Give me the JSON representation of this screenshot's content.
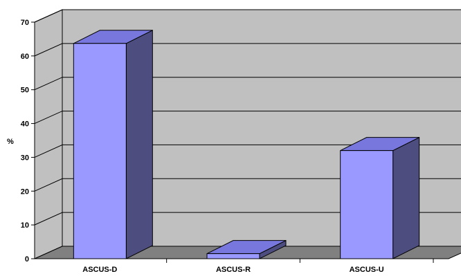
{
  "chart_data": {
    "type": "bar",
    "title": "",
    "xlabel": "",
    "ylabel": "%",
    "ylim": [
      0,
      70
    ],
    "y_ticks": [
      "0",
      "10",
      "20",
      "30",
      "40",
      "50",
      "60",
      "70"
    ],
    "categories": [
      "ASCUS-D",
      "ASCUS-R",
      "ASCUS-U"
    ],
    "values": [
      63.7,
      1.5,
      32.0
    ],
    "grid": true,
    "style": "3d-column",
    "colors": {
      "bar_front": "#9999ff",
      "bar_top": "#7777dd",
      "bar_side": "#4d4d80",
      "wall": "#c0c0c0",
      "floor": "#808080",
      "gridline": "#000000"
    }
  }
}
